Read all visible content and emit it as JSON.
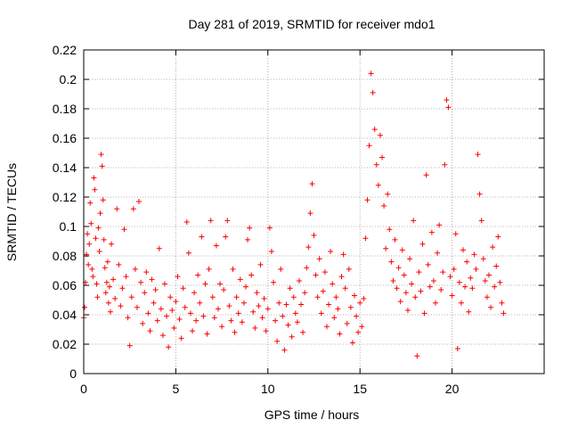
{
  "chart_data": {
    "type": "scatter",
    "title": "Day 281 of 2019, SRMTID for receiver mdo1",
    "xlabel": "GPS time / hours",
    "ylabel": "SRMTID / TECUs",
    "xlim": [
      0,
      25
    ],
    "ylim": [
      0,
      0.22
    ],
    "xticks": [
      0,
      5,
      10,
      15,
      20
    ],
    "xtick_labels": [
      "0",
      "5",
      "10",
      "15",
      "20"
    ],
    "yticks": [
      0,
      0.02,
      0.04,
      0.06,
      0.08,
      0.1,
      0.12,
      0.14,
      0.16,
      0.18,
      0.2,
      0.22
    ],
    "ytick_labels": [
      "0",
      "0.02",
      "0.04",
      "0.06",
      "0.08",
      "0.1",
      "0.12",
      "0.14",
      "0.16",
      "0.18",
      "0.2",
      "0.22"
    ],
    "grid": true,
    "marker": "+",
    "color": "#ff0000",
    "series": [
      {
        "name": "SRMTID",
        "points": [
          [
            0.0,
            0.038
          ],
          [
            0.05,
            0.045
          ],
          [
            0.1,
            0.062
          ],
          [
            0.15,
            0.081
          ],
          [
            0.2,
            0.095
          ],
          [
            0.25,
            0.074
          ],
          [
            0.3,
            0.088
          ],
          [
            0.35,
            0.116
          ],
          [
            0.4,
            0.102
          ],
          [
            0.45,
            0.071
          ],
          [
            0.5,
            0.066
          ],
          [
            0.55,
            0.133
          ],
          [
            0.6,
            0.125
          ],
          [
            0.65,
            0.092
          ],
          [
            0.7,
            0.061
          ],
          [
            0.75,
            0.052
          ],
          [
            0.8,
            0.099
          ],
          [
            0.85,
            0.083
          ],
          [
            0.9,
            0.109
          ],
          [
            0.95,
            0.149
          ],
          [
            1.0,
            0.141
          ],
          [
            1.05,
            0.118
          ],
          [
            1.1,
            0.091
          ],
          [
            1.15,
            0.072
          ],
          [
            1.2,
            0.055
          ],
          [
            1.25,
            0.062
          ],
          [
            1.3,
            0.076
          ],
          [
            1.35,
            0.048
          ],
          [
            1.4,
            0.059
          ],
          [
            1.45,
            0.042
          ],
          [
            1.5,
            0.088
          ],
          [
            1.6,
            0.064
          ],
          [
            1.7,
            0.051
          ],
          [
            1.8,
            0.112
          ],
          [
            1.9,
            0.074
          ],
          [
            2.0,
            0.046
          ],
          [
            2.1,
            0.058
          ],
          [
            2.2,
            0.098
          ],
          [
            2.3,
            0.066
          ],
          [
            2.4,
            0.038
          ],
          [
            2.5,
            0.019
          ],
          [
            2.6,
            0.052
          ],
          [
            2.7,
            0.112
          ],
          [
            2.8,
            0.071
          ],
          [
            2.9,
            0.045
          ],
          [
            3.0,
            0.117
          ],
          [
            3.1,
            0.062
          ],
          [
            3.2,
            0.034
          ],
          [
            3.3,
            0.055
          ],
          [
            3.4,
            0.069
          ],
          [
            3.5,
            0.041
          ],
          [
            3.6,
            0.029
          ],
          [
            3.7,
            0.064
          ],
          [
            3.8,
            0.048
          ],
          [
            3.9,
            0.057
          ],
          [
            4.0,
            0.036
          ],
          [
            4.1,
            0.085
          ],
          [
            4.2,
            0.044
          ],
          [
            4.3,
            0.026
          ],
          [
            4.4,
            0.061
          ],
          [
            4.5,
            0.039
          ],
          [
            4.6,
            0.018
          ],
          [
            4.7,
            0.052
          ],
          [
            4.8,
            0.043
          ],
          [
            4.9,
            0.031
          ],
          [
            5.0,
            0.049
          ],
          [
            5.1,
            0.066
          ],
          [
            5.2,
            0.037
          ],
          [
            5.3,
            0.024
          ],
          [
            5.4,
            0.058
          ],
          [
            5.5,
            0.045
          ],
          [
            5.6,
            0.103
          ],
          [
            5.7,
            0.082
          ],
          [
            5.8,
            0.041
          ],
          [
            5.9,
            0.029
          ],
          [
            6.0,
            0.055
          ],
          [
            6.1,
            0.036
          ],
          [
            6.2,
            0.067
          ],
          [
            6.3,
            0.048
          ],
          [
            6.4,
            0.093
          ],
          [
            6.5,
            0.039
          ],
          [
            6.6,
            0.061
          ],
          [
            6.7,
            0.027
          ],
          [
            6.8,
            0.071
          ],
          [
            6.9,
            0.104
          ],
          [
            7.0,
            0.052
          ],
          [
            7.1,
            0.038
          ],
          [
            7.2,
            0.087
          ],
          [
            7.3,
            0.044
          ],
          [
            7.4,
            0.061
          ],
          [
            7.5,
            0.032
          ],
          [
            7.6,
            0.057
          ],
          [
            7.7,
            0.093
          ],
          [
            7.8,
            0.104
          ],
          [
            7.9,
            0.046
          ],
          [
            8.0,
            0.036
          ],
          [
            8.1,
            0.071
          ],
          [
            8.2,
            0.028
          ],
          [
            8.3,
            0.052
          ],
          [
            8.4,
            0.041
          ],
          [
            8.5,
            0.064
          ],
          [
            8.6,
            0.035
          ],
          [
            8.7,
            0.048
          ],
          [
            8.8,
            0.059
          ],
          [
            8.9,
            0.091
          ],
          [
            9.0,
            0.099
          ],
          [
            9.1,
            0.067
          ],
          [
            9.2,
            0.042
          ],
          [
            9.3,
            0.031
          ],
          [
            9.4,
            0.055
          ],
          [
            9.5,
            0.046
          ],
          [
            9.6,
            0.074
          ],
          [
            9.7,
            0.038
          ],
          [
            9.8,
            0.051
          ],
          [
            9.9,
            0.029
          ],
          [
            10.0,
            0.044
          ],
          [
            10.1,
            0.099
          ],
          [
            10.2,
            0.083
          ],
          [
            10.3,
            0.062
          ],
          [
            10.4,
            0.036
          ],
          [
            10.5,
            0.022
          ],
          [
            10.6,
            0.048
          ],
          [
            10.7,
            0.071
          ],
          [
            10.8,
            0.039
          ],
          [
            10.9,
            0.016
          ],
          [
            11.0,
            0.047
          ],
          [
            11.1,
            0.033
          ],
          [
            11.2,
            0.058
          ],
          [
            11.3,
            0.025
          ],
          [
            11.4,
            0.052
          ],
          [
            11.5,
            0.041
          ],
          [
            11.6,
            0.035
          ],
          [
            11.7,
            0.063
          ],
          [
            11.8,
            0.047
          ],
          [
            11.9,
            0.028
          ],
          [
            12.0,
            0.055
          ],
          [
            12.1,
            0.072
          ],
          [
            12.2,
            0.086
          ],
          [
            12.3,
            0.109
          ],
          [
            12.4,
            0.129
          ],
          [
            12.5,
            0.094
          ],
          [
            12.6,
            0.067
          ],
          [
            12.7,
            0.052
          ],
          [
            12.8,
            0.078
          ],
          [
            12.9,
            0.041
          ],
          [
            13.0,
            0.056
          ],
          [
            13.1,
            0.069
          ],
          [
            13.2,
            0.032
          ],
          [
            13.3,
            0.047
          ],
          [
            13.4,
            0.083
          ],
          [
            13.5,
            0.061
          ],
          [
            13.6,
            0.038
          ],
          [
            13.7,
            0.052
          ],
          [
            13.8,
            0.044
          ],
          [
            13.9,
            0.027
          ],
          [
            14.0,
            0.066
          ],
          [
            14.1,
            0.081
          ],
          [
            14.2,
            0.058
          ],
          [
            14.3,
            0.034
          ],
          [
            14.4,
            0.071
          ],
          [
            14.5,
            0.045
          ],
          [
            14.6,
            0.021
          ],
          [
            14.7,
            0.053
          ],
          [
            14.8,
            0.039
          ],
          [
            14.9,
            0.028
          ],
          [
            15.0,
            0.048
          ],
          [
            15.1,
            0.032
          ],
          [
            15.2,
            0.051
          ],
          [
            15.3,
            0.092
          ],
          [
            15.4,
            0.118
          ],
          [
            15.5,
            0.155
          ],
          [
            15.6,
            0.204
          ],
          [
            15.7,
            0.191
          ],
          [
            15.8,
            0.166
          ],
          [
            15.9,
            0.142
          ],
          [
            16.0,
            0.128
          ],
          [
            16.1,
            0.162
          ],
          [
            16.2,
            0.147
          ],
          [
            16.3,
            0.114
          ],
          [
            16.4,
            0.085
          ],
          [
            16.5,
            0.122
          ],
          [
            16.6,
            0.098
          ],
          [
            16.7,
            0.076
          ],
          [
            16.8,
            0.063
          ],
          [
            16.9,
            0.091
          ],
          [
            17.0,
            0.058
          ],
          [
            17.1,
            0.072
          ],
          [
            17.2,
            0.049
          ],
          [
            17.3,
            0.084
          ],
          [
            17.4,
            0.067
          ],
          [
            17.5,
            0.055
          ],
          [
            17.6,
            0.043
          ],
          [
            17.7,
            0.078
          ],
          [
            17.8,
            0.061
          ],
          [
            17.9,
            0.104
          ],
          [
            18.0,
            0.052
          ],
          [
            18.1,
            0.012
          ],
          [
            18.2,
            0.069
          ],
          [
            18.3,
            0.056
          ],
          [
            18.4,
            0.088
          ],
          [
            18.5,
            0.041
          ],
          [
            18.6,
            0.135
          ],
          [
            18.7,
            0.074
          ],
          [
            18.8,
            0.059
          ],
          [
            18.9,
            0.096
          ],
          [
            19.0,
            0.063
          ],
          [
            19.1,
            0.048
          ],
          [
            19.2,
            0.082
          ],
          [
            19.3,
            0.101
          ],
          [
            19.4,
            0.057
          ],
          [
            19.5,
            0.069
          ],
          [
            19.6,
            0.142
          ],
          [
            19.7,
            0.186
          ],
          [
            19.8,
            0.181
          ],
          [
            19.9,
            0.066
          ],
          [
            20.0,
            0.053
          ],
          [
            20.1,
            0.071
          ],
          [
            20.2,
            0.095
          ],
          [
            20.3,
            0.017
          ],
          [
            20.4,
            0.062
          ],
          [
            20.5,
            0.048
          ],
          [
            20.6,
            0.084
          ],
          [
            20.7,
            0.059
          ],
          [
            20.8,
            0.076
          ],
          [
            20.9,
            0.042
          ],
          [
            21.0,
            0.065
          ],
          [
            21.1,
            0.058
          ],
          [
            21.2,
            0.081
          ],
          [
            21.3,
            0.071
          ],
          [
            21.4,
            0.149
          ],
          [
            21.5,
            0.122
          ],
          [
            21.6,
            0.104
          ],
          [
            21.7,
            0.078
          ],
          [
            21.8,
            0.063
          ],
          [
            21.9,
            0.052
          ],
          [
            22.0,
            0.067
          ],
          [
            22.1,
            0.045
          ],
          [
            22.2,
            0.086
          ],
          [
            22.3,
            0.059
          ],
          [
            22.4,
            0.073
          ],
          [
            22.5,
            0.093
          ],
          [
            22.6,
            0.062
          ],
          [
            22.7,
            0.048
          ],
          [
            22.8,
            0.041
          ]
        ]
      }
    ]
  }
}
